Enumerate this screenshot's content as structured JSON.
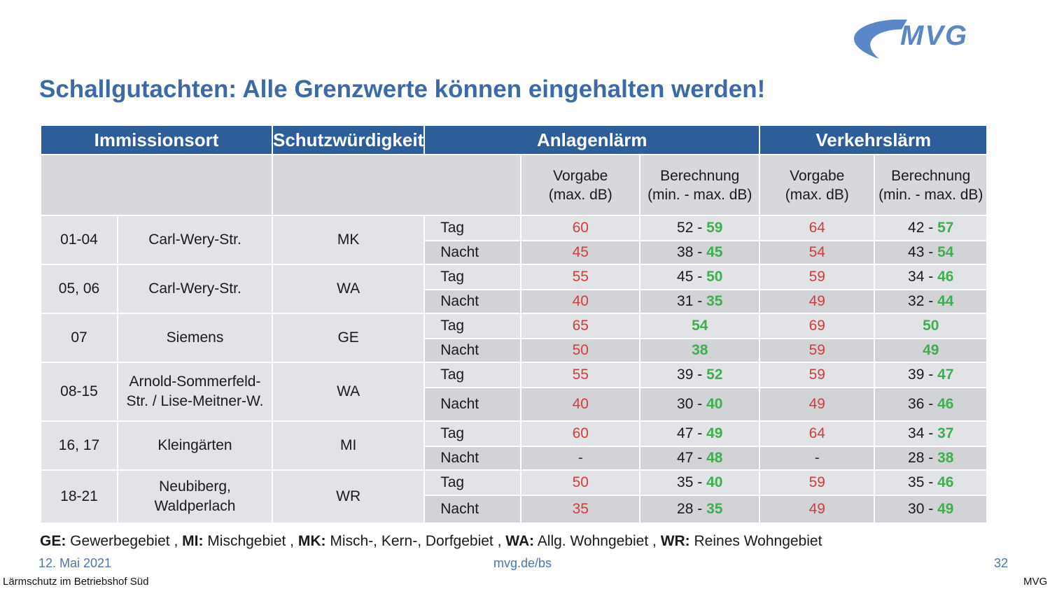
{
  "logo": {
    "text": "MVG",
    "color": "#5b87c7"
  },
  "title": "Schallgutachten: Alle Grenzwerte können eingehalten werden!",
  "table": {
    "headers": [
      "Immissionsort",
      "Schutzwürdigkeit",
      "Anlagenlärm",
      "Verkehrslärm"
    ],
    "subheaders": {
      "vorgabe": [
        "Vorgabe",
        "(max. dB)"
      ],
      "berechnung": [
        "Berechnung",
        "(min. - max. dB)"
      ]
    },
    "rows": [
      {
        "nr": "01-04",
        "name": [
          "Carl-Wery-Str."
        ],
        "class": "MK",
        "periods": [
          {
            "label": "Tag",
            "a_vorgabe": "60",
            "a_min": "52",
            "a_max": "59",
            "v_vorgabe": "64",
            "v_min": "42",
            "v_max": "57"
          },
          {
            "label": "Nacht",
            "a_vorgabe": "45",
            "a_min": "38",
            "a_max": "45",
            "v_vorgabe": "54",
            "v_min": "43",
            "v_max": "54"
          }
        ]
      },
      {
        "nr": "05, 06",
        "name": [
          "Carl-Wery-Str."
        ],
        "class": "WA",
        "periods": [
          {
            "label": "Tag",
            "a_vorgabe": "55",
            "a_min": "45",
            "a_max": "50",
            "v_vorgabe": "59",
            "v_min": "34",
            "v_max": "46"
          },
          {
            "label": "Nacht",
            "a_vorgabe": "40",
            "a_min": "31",
            "a_max": "35",
            "v_vorgabe": "49",
            "v_min": "32",
            "v_max": "44"
          }
        ]
      },
      {
        "nr": "07",
        "name": [
          "Siemens"
        ],
        "class": "GE",
        "periods": [
          {
            "label": "Tag",
            "a_vorgabe": "65",
            "a_min": "",
            "a_max": "54",
            "v_vorgabe": "69",
            "v_min": "",
            "v_max": "50"
          },
          {
            "label": "Nacht",
            "a_vorgabe": "50",
            "a_min": "",
            "a_max": "38",
            "v_vorgabe": "59",
            "v_min": "",
            "v_max": "49"
          }
        ]
      },
      {
        "nr": "08-15",
        "name": [
          "Arnold-Sommerfeld-",
          "Str. / Lise-Meitner-W."
        ],
        "class": "WA",
        "periods": [
          {
            "label": "Tag",
            "a_vorgabe": "55",
            "a_min": "39",
            "a_max": "52",
            "v_vorgabe": "59",
            "v_min": "39",
            "v_max": "47"
          },
          {
            "label": "Nacht",
            "a_vorgabe": "40",
            "a_min": "30",
            "a_max": "40",
            "v_vorgabe": "49",
            "v_min": "36",
            "v_max": "46"
          }
        ]
      },
      {
        "nr": "16, 17",
        "name": [
          "Kleingärten"
        ],
        "class": "MI",
        "periods": [
          {
            "label": "Tag",
            "a_vorgabe": "60",
            "a_min": "47",
            "a_max": "49",
            "v_vorgabe": "64",
            "v_min": "34",
            "v_max": "37"
          },
          {
            "label": "Nacht",
            "a_vorgabe": "-",
            "a_min": "47",
            "a_max": "48",
            "v_vorgabe": "-",
            "v_min": "28",
            "v_max": "38"
          }
        ]
      },
      {
        "nr": "18-21",
        "name": [
          "Neubiberg,",
          "Waldperlach"
        ],
        "class": "WR",
        "periods": [
          {
            "label": "Tag",
            "a_vorgabe": "50",
            "a_min": "35",
            "a_max": "40",
            "v_vorgabe": "59",
            "v_min": "35",
            "v_max": "46"
          },
          {
            "label": "Nacht",
            "a_vorgabe": "35",
            "a_min": "28",
            "a_max": "35",
            "v_vorgabe": "49",
            "v_min": "30",
            "v_max": "49"
          }
        ]
      }
    ]
  },
  "legend": [
    {
      "abbr": "GE:",
      "text": " Gewerbegebiet"
    },
    {
      "abbr": "MI:",
      "text": " Mischgebiet"
    },
    {
      "abbr": "MK:",
      "text": " Misch-, Kern-, Dorfgebiet"
    },
    {
      "abbr": "WA:",
      "text": " Allg. Wohngebiet"
    },
    {
      "abbr": "WR:",
      "text": " Reines Wohngebiet"
    }
  ],
  "footer": {
    "date": "12. Mai 2021",
    "url": "mvg.de/bs",
    "page": "32"
  },
  "bottom_bar": {
    "left": "Lärmschutz im Betriebshof Süd",
    "right": "MVG"
  },
  "colors": {
    "header_blue": "#2e5d9b",
    "title_blue": "#3c6aa9",
    "limit_red": "#d63b3b",
    "ok_green": "#3fae4e"
  }
}
